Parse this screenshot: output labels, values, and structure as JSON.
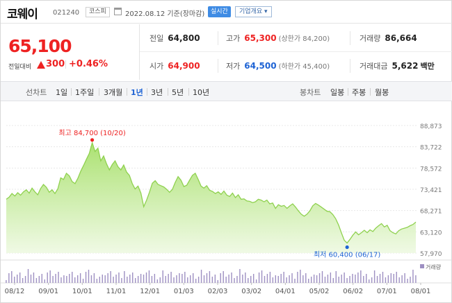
{
  "header": {
    "name": "코웨이",
    "code": "021240",
    "market": "코스피",
    "basis": "2022.08.12 기준(장마감)",
    "realtime": "실시간",
    "company_info": "기업개요 ▾"
  },
  "price": {
    "current": "65,100",
    "change_label": "전일대비",
    "change_value": "300",
    "change_pct": "+0.46%"
  },
  "stats": {
    "prev_label": "전일",
    "prev_value": "64,800",
    "high_label": "고가",
    "high_value": "65,300",
    "upper_limit": "(상한가 84,200)",
    "volume_label": "거래량",
    "volume_value": "86,664",
    "open_label": "시가",
    "open_value": "64,900",
    "low_label": "저가",
    "low_value": "64,500",
    "lower_limit": "(하한가 45,400)",
    "amount_label": "거래대금",
    "amount_value": "5,622",
    "amount_unit": "백만"
  },
  "toolbar": {
    "line_label": "선차트",
    "periods": [
      "1일",
      "1주일",
      "3개월",
      "1년",
      "3년",
      "5년",
      "10년"
    ],
    "active_period": "1년",
    "candle_label": "봉차트",
    "candles": [
      "일봉",
      "주봉",
      "월봉"
    ]
  },
  "chart_data": {
    "type": "area",
    "ylim": [
      57970,
      88873
    ],
    "yticks": [
      "88,873",
      "83,722",
      "78,572",
      "73,421",
      "68,271",
      "63,120",
      "57,970"
    ],
    "xticks": [
      "08/12",
      "09/01",
      "10/01",
      "11/01",
      "12/01",
      "01/03",
      "02/03",
      "03/02",
      "04/01",
      "05/02",
      "06/02",
      "07/01",
      "08/01"
    ],
    "high_annotation": "최고 84,700 (10/20)",
    "low_annotation": "최저 60,400 (06/17)",
    "high": {
      "date": "10/20",
      "value": 84700
    },
    "low": {
      "date": "06/17",
      "value": 60400
    },
    "volume_label": "거래량",
    "colors": {
      "line": "#8fd14f",
      "fill_top": "#a7e06a",
      "fill_bottom": "#eef9e2",
      "high": "#e22",
      "low": "#1e63d4",
      "volume": "#9d8fc2"
    },
    "series": [
      {
        "values": [
          71000,
          71500,
          72400,
          71800,
          72600,
          72000,
          72800,
          73300,
          72500,
          73700,
          72800,
          72100,
          73600,
          74600,
          73900,
          72700,
          73300,
          72400,
          73500,
          76200,
          75800,
          77300,
          76700,
          75300,
          74800,
          76100,
          77800,
          79200,
          80700,
          82100,
          84700,
          82600,
          83400,
          80300,
          81500,
          79600,
          78100,
          79400,
          80300,
          78900,
          78100,
          79300,
          77600,
          76800,
          74800,
          73500,
          74200,
          72500,
          69200,
          70800,
          72700,
          74900,
          75500,
          74600,
          74300,
          74000,
          73400,
          72700,
          73400,
          75100,
          76500,
          75600,
          74100,
          74400,
          75600,
          76800,
          77300,
          75800,
          74200,
          73700,
          74300,
          73200,
          72900,
          72400,
          72800,
          72200,
          73000,
          72000,
          71700,
          72500,
          71400,
          72100,
          71000,
          71100,
          70600,
          70500,
          70200,
          70400,
          71000,
          70800,
          70400,
          70800,
          69900,
          70100,
          68800,
          69700,
          69300,
          69500,
          68800,
          69400,
          69900,
          69100,
          68200,
          67400,
          66900,
          67400,
          68200,
          69400,
          70000,
          69600,
          69100,
          68600,
          68100,
          68000,
          67300,
          66300,
          64800,
          62900,
          61100,
          60400,
          61300,
          62300,
          63100,
          62400,
          62900,
          63500,
          62900,
          63600,
          63200,
          64000,
          64600,
          65100,
          64300,
          64700,
          63400,
          62900,
          62600,
          63400,
          63800,
          64000,
          64200,
          64600,
          64900,
          65500
        ]
      }
    ]
  }
}
